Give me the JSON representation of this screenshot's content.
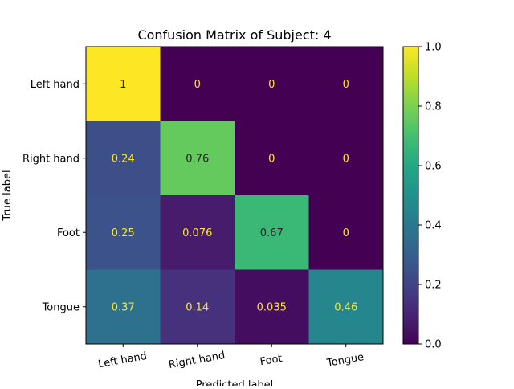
{
  "chart_data": {
    "type": "heatmap",
    "title": "Confusion Matrix of Subject: 4",
    "xlabel": "Predicted label",
    "ylabel": "True label",
    "x_categories": [
      "Left hand",
      "Right hand",
      "Foot",
      "Tongue"
    ],
    "y_categories": [
      "Left hand",
      "Right hand",
      "Foot",
      "Tongue"
    ],
    "values": [
      [
        1,
        0,
        0,
        0
      ],
      [
        0.24,
        0.76,
        0,
        0
      ],
      [
        0.25,
        0.076,
        0.67,
        0
      ],
      [
        0.37,
        0.14,
        0.035,
        0.46
      ]
    ],
    "cell_labels": [
      [
        "1",
        "0",
        "0",
        "0"
      ],
      [
        "0.24",
        "0.76",
        "0",
        "0"
      ],
      [
        "0.25",
        "0.076",
        "0.67",
        "0"
      ],
      [
        "0.37",
        "0.14",
        "0.035",
        "0.46"
      ]
    ],
    "colormap": "viridis",
    "colorbar": {
      "range": [
        0.0,
        1.0
      ],
      "ticks": [
        0.0,
        0.2,
        0.4,
        0.6,
        0.8,
        1.0
      ],
      "tick_labels": [
        "0.0",
        "0.2",
        "0.4",
        "0.6",
        "0.8",
        "1.0"
      ]
    },
    "text_colors": {
      "light": "#fde725",
      "dark": "#222222"
    }
  }
}
